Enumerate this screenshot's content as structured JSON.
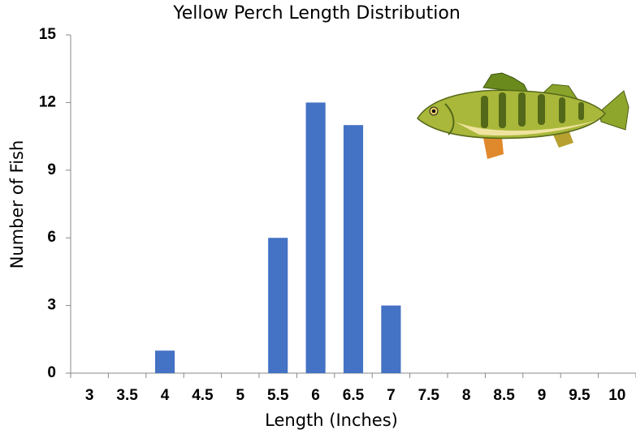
{
  "chart_data": {
    "type": "bar",
    "title": "Yellow Perch Length Distribution",
    "x_label": "Length (Inches)",
    "y_label": "Number of Fish",
    "categories": [
      "3",
      "3.5",
      "4",
      "4.5",
      "5",
      "5.5",
      "6",
      "6.5",
      "7",
      "7.5",
      "8",
      "8.5",
      "9",
      "9.5",
      "10"
    ],
    "values": [
      0,
      0,
      1,
      0,
      0,
      6,
      12,
      11,
      3,
      0,
      0,
      0,
      0,
      0,
      0
    ],
    "color": "#4472c4",
    "ylim": [
      0,
      15
    ],
    "yticks": [
      0,
      3,
      6,
      9,
      12,
      15
    ],
    "grid": false
  }
}
